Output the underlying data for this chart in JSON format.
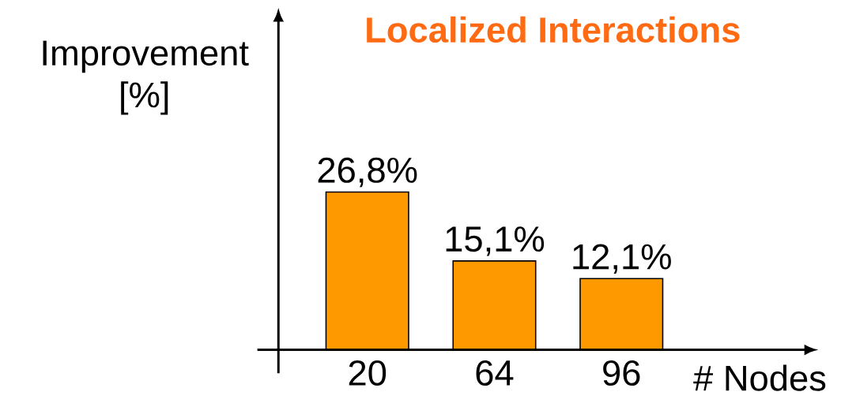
{
  "chart_data": {
    "type": "bar",
    "title": "Localized Interactions",
    "xlabel": "# Nodes",
    "ylabel": "Improvement [%]",
    "categories": [
      "20",
      "64",
      "96"
    ],
    "values": [
      26.8,
      15.1,
      12.1
    ],
    "value_labels": [
      "26,8%",
      "15,1%",
      "12,1%"
    ],
    "color": "#ff9900"
  }
}
